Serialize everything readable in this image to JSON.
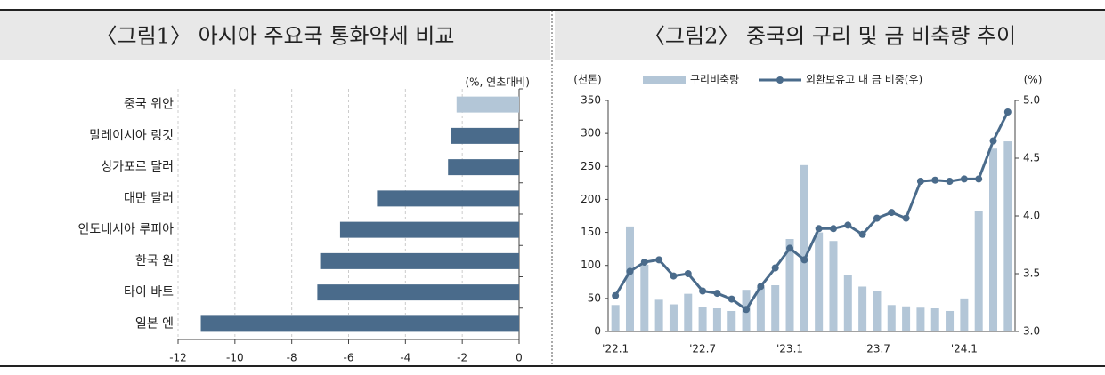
{
  "chart_data": [
    {
      "type": "bar",
      "orientation": "horizontal",
      "title": "〈그림1〉 아시아 주요국 통화약세 비교",
      "unit_label": "(%, 연초대비)",
      "categories": [
        "중국 위안",
        "말레이시아 링깃",
        "싱가포르 달러",
        "대만 달러",
        "인도네시아 루피아",
        "한국 원",
        "타이 바트",
        "일본 엔"
      ],
      "values": [
        -2.2,
        -2.4,
        -2.5,
        -5.0,
        -6.3,
        -7.0,
        -7.1,
        -11.2
      ],
      "colors": [
        "#b3c6d7",
        "#4a6b8b",
        "#4a6b8b",
        "#4a6b8b",
        "#4a6b8b",
        "#4a6b8b",
        "#4a6b8b",
        "#4a6b8b"
      ],
      "xlim": [
        -12,
        0
      ],
      "xticks": [
        -12,
        -10,
        -8,
        -6,
        -4,
        -2,
        0
      ],
      "grid": true
    },
    {
      "type": "combo",
      "title": "〈그림2〉 중국의 구리 및 금 비축량 추이",
      "y_label": "(천톤)",
      "y2_label": "(%)",
      "categories": [
        "'22.1",
        null,
        null,
        null,
        null,
        null,
        "'22.7",
        null,
        null,
        null,
        null,
        null,
        "'23.1",
        null,
        null,
        null,
        null,
        null,
        "'23.7",
        null,
        null,
        null,
        null,
        null,
        "'24.1",
        null,
        null,
        null
      ],
      "series": [
        {
          "name": "구리비축량",
          "type": "bar",
          "color": "#b3c6d7",
          "values": [
            40,
            159,
            101,
            48,
            41,
            57,
            37,
            35,
            31,
            63,
            67,
            70,
            140,
            252,
            150,
            137,
            86,
            68,
            61,
            40,
            38,
            36,
            35,
            31,
            50,
            183,
            277,
            288
          ]
        },
        {
          "name": "외환보유고 내 금 비중(우)",
          "type": "line",
          "color": "#4a6b8b",
          "axis": "y2",
          "values": [
            3.31,
            3.52,
            3.6,
            3.62,
            3.48,
            3.5,
            3.35,
            3.33,
            3.28,
            3.19,
            3.39,
            3.55,
            3.72,
            3.62,
            3.89,
            3.89,
            3.92,
            3.84,
            3.98,
            4.03,
            3.98,
            4.3,
            4.31,
            4.3,
            4.32,
            4.32,
            4.65,
            4.9
          ]
        }
      ],
      "ylim": [
        0,
        350
      ],
      "yticks": [
        0,
        50,
        100,
        150,
        200,
        250,
        300,
        350
      ],
      "y2lim": [
        3,
        5
      ],
      "y2ticks": [
        {
          "value": 3,
          "label": "3.0"
        },
        3.5,
        {
          "value": 4,
          "label": "4.0"
        },
        4.5,
        {
          "value": 5,
          "label": "5.0"
        }
      ],
      "grid": false
    }
  ]
}
